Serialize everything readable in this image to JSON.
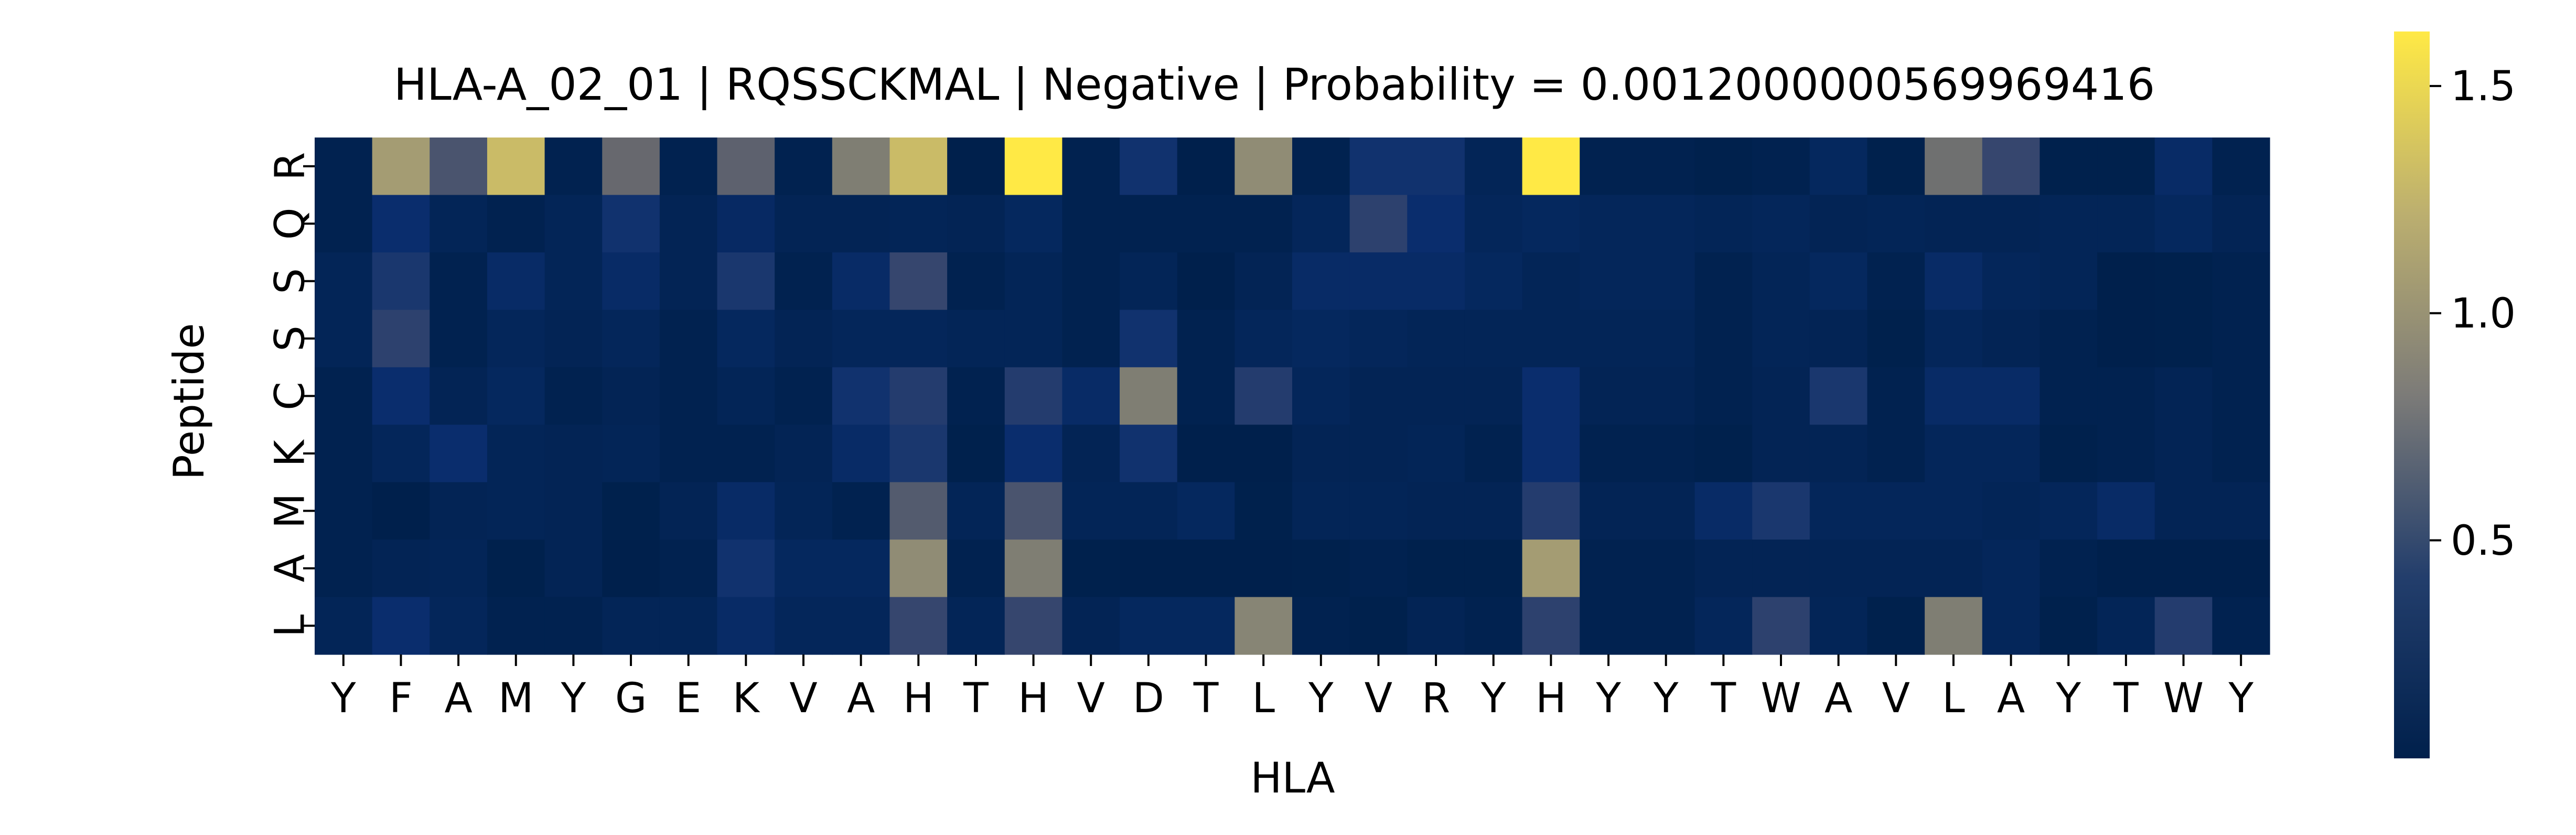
{
  "chart_data": {
    "type": "heatmap",
    "title": "HLA-A_02_01 | RQSSCKMAL | Negative | Probability = 0.0012000000569969416",
    "xlabel": "HLA",
    "ylabel": "Peptide",
    "x_categories": [
      "Y",
      "F",
      "A",
      "M",
      "Y",
      "G",
      "E",
      "K",
      "V",
      "A",
      "H",
      "T",
      "H",
      "V",
      "D",
      "T",
      "L",
      "Y",
      "V",
      "R",
      "Y",
      "H",
      "Y",
      "Y",
      "T",
      "W",
      "A",
      "V",
      "L",
      "A",
      "Y",
      "T",
      "W",
      "Y"
    ],
    "y_categories": [
      "R",
      "Q",
      "S",
      "S",
      "C",
      "K",
      "M",
      "A",
      "L"
    ],
    "colormap": "cividis",
    "colorbar": {
      "min": 0.02,
      "max": 1.62,
      "ticks": [
        0.5,
        1.0,
        1.5
      ],
      "tick_labels": [
        "0.5",
        "1.0",
        "1.5"
      ]
    },
    "values": [
      [
        0.05,
        1.1,
        0.6,
        1.3,
        0.05,
        0.75,
        0.05,
        0.7,
        0.05,
        0.9,
        1.3,
        0.02,
        1.62,
        0.05,
        0.3,
        0.02,
        1.0,
        0.05,
        0.3,
        0.3,
        0.1,
        1.62,
        0.05,
        0.05,
        0.03,
        0.05,
        0.15,
        0.03,
        0.8,
        0.5,
        0.03,
        0.03,
        0.2,
        0.05
      ],
      [
        0.05,
        0.25,
        0.1,
        0.05,
        0.1,
        0.3,
        0.08,
        0.18,
        0.08,
        0.08,
        0.1,
        0.08,
        0.15,
        0.05,
        0.05,
        0.05,
        0.05,
        0.12,
        0.45,
        0.25,
        0.12,
        0.15,
        0.12,
        0.12,
        0.1,
        0.12,
        0.08,
        0.1,
        0.08,
        0.08,
        0.1,
        0.1,
        0.15,
        0.08
      ],
      [
        0.1,
        0.35,
        0.05,
        0.2,
        0.1,
        0.2,
        0.08,
        0.35,
        0.05,
        0.2,
        0.5,
        0.05,
        0.1,
        0.05,
        0.1,
        0.02,
        0.08,
        0.2,
        0.2,
        0.2,
        0.15,
        0.1,
        0.12,
        0.12,
        0.05,
        0.1,
        0.15,
        0.05,
        0.2,
        0.12,
        0.1,
        0.02,
        0.03,
        0.05
      ],
      [
        0.1,
        0.45,
        0.05,
        0.12,
        0.08,
        0.12,
        0.05,
        0.15,
        0.08,
        0.12,
        0.12,
        0.1,
        0.1,
        0.05,
        0.3,
        0.05,
        0.12,
        0.15,
        0.12,
        0.1,
        0.1,
        0.1,
        0.1,
        0.1,
        0.05,
        0.1,
        0.08,
        0.03,
        0.12,
        0.08,
        0.05,
        0.02,
        0.03,
        0.05
      ],
      [
        0.05,
        0.25,
        0.08,
        0.15,
        0.05,
        0.08,
        0.05,
        0.1,
        0.05,
        0.3,
        0.4,
        0.05,
        0.4,
        0.2,
        0.9,
        0.05,
        0.4,
        0.12,
        0.08,
        0.08,
        0.08,
        0.25,
        0.08,
        0.08,
        0.05,
        0.08,
        0.35,
        0.05,
        0.2,
        0.2,
        0.05,
        0.05,
        0.08,
        0.05
      ],
      [
        0.05,
        0.12,
        0.25,
        0.1,
        0.08,
        0.1,
        0.05,
        0.05,
        0.08,
        0.2,
        0.35,
        0.03,
        0.25,
        0.08,
        0.3,
        0.02,
        0.02,
        0.08,
        0.08,
        0.1,
        0.05,
        0.25,
        0.05,
        0.05,
        0.03,
        0.08,
        0.08,
        0.05,
        0.12,
        0.12,
        0.03,
        0.05,
        0.08,
        0.05
      ],
      [
        0.05,
        0.02,
        0.08,
        0.1,
        0.08,
        0.03,
        0.08,
        0.2,
        0.1,
        0.05,
        0.65,
        0.1,
        0.6,
        0.1,
        0.1,
        0.15,
        0.03,
        0.1,
        0.1,
        0.08,
        0.08,
        0.4,
        0.08,
        0.08,
        0.2,
        0.35,
        0.12,
        0.12,
        0.12,
        0.1,
        0.12,
        0.2,
        0.08,
        0.08
      ],
      [
        0.05,
        0.08,
        0.1,
        0.03,
        0.08,
        0.02,
        0.05,
        0.3,
        0.15,
        0.15,
        1.0,
        0.05,
        0.9,
        0.03,
        0.02,
        0.02,
        0.02,
        0.03,
        0.05,
        0.03,
        0.03,
        1.1,
        0.05,
        0.05,
        0.08,
        0.08,
        0.08,
        0.08,
        0.08,
        0.12,
        0.05,
        0.02,
        0.02,
        0.02
      ],
      [
        0.1,
        0.25,
        0.12,
        0.05,
        0.05,
        0.1,
        0.1,
        0.2,
        0.12,
        0.12,
        0.5,
        0.1,
        0.5,
        0.08,
        0.15,
        0.15,
        0.95,
        0.05,
        0.03,
        0.08,
        0.05,
        0.45,
        0.05,
        0.05,
        0.12,
        0.45,
        0.1,
        0.03,
        0.9,
        0.12,
        0.03,
        0.1,
        0.4,
        0.05
      ]
    ]
  }
}
